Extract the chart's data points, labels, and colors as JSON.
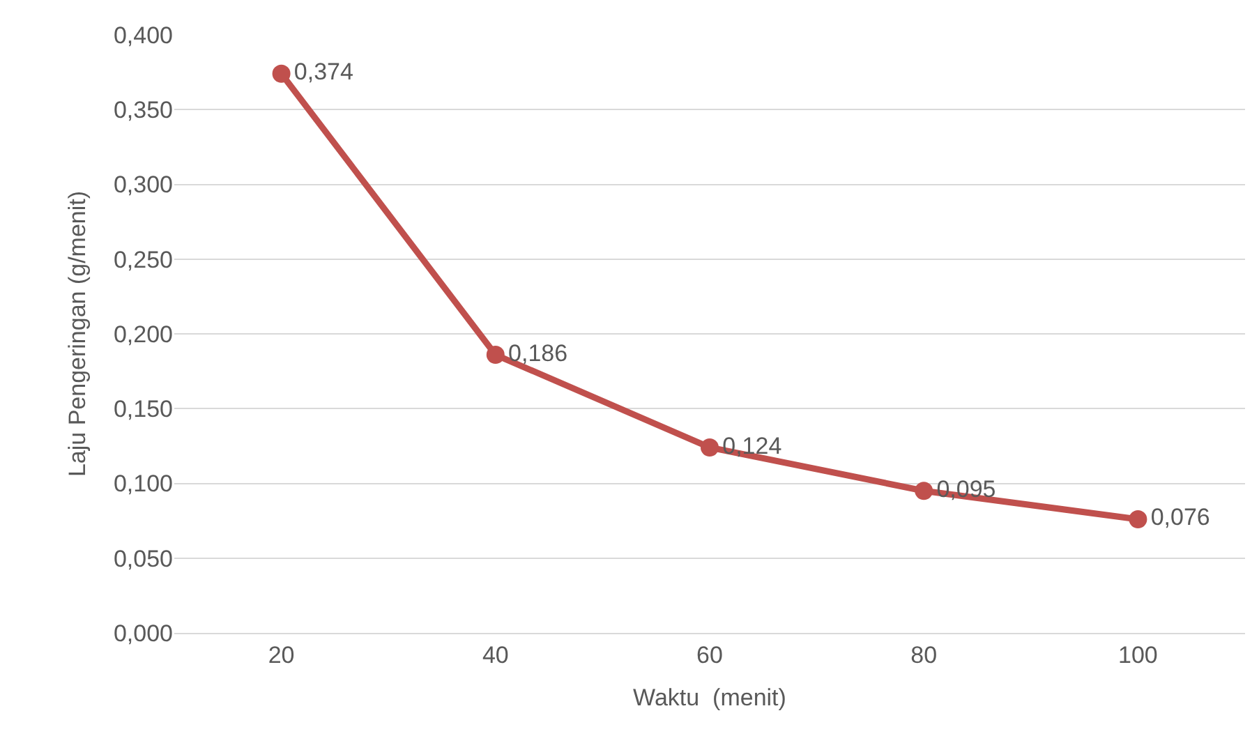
{
  "chart_data": {
    "type": "line",
    "xlabel": "Waktu  (menit)",
    "ylabel": "Laju Pengeringan (g/menit)",
    "categories": [
      "20",
      "40",
      "60",
      "80",
      "100"
    ],
    "series": [
      {
        "color": "#c0504d",
        "values": [
          0.374,
          0.186,
          0.124,
          0.095,
          0.076
        ],
        "value_labels": [
          "0,374",
          "0,186",
          "0,124",
          "0,095",
          "0,076"
        ]
      }
    ],
    "ylim": [
      0,
      0.4
    ],
    "yticks": [
      {
        "value": 0,
        "label": "0,000"
      },
      {
        "value": 0.05,
        "label": "0,050"
      },
      {
        "value": 0.1,
        "label": "0,100"
      },
      {
        "value": 0.15,
        "label": "0,150"
      },
      {
        "value": 0.2,
        "label": "0,200"
      },
      {
        "value": 0.25,
        "label": "0,250"
      },
      {
        "value": 0.3,
        "label": "0,300"
      },
      {
        "value": 0.35,
        "label": "0,350"
      },
      {
        "value": 0.4,
        "label": "0,400"
      }
    ],
    "grid": "y",
    "marker": "circle",
    "line_style": "solid",
    "legend": false
  }
}
